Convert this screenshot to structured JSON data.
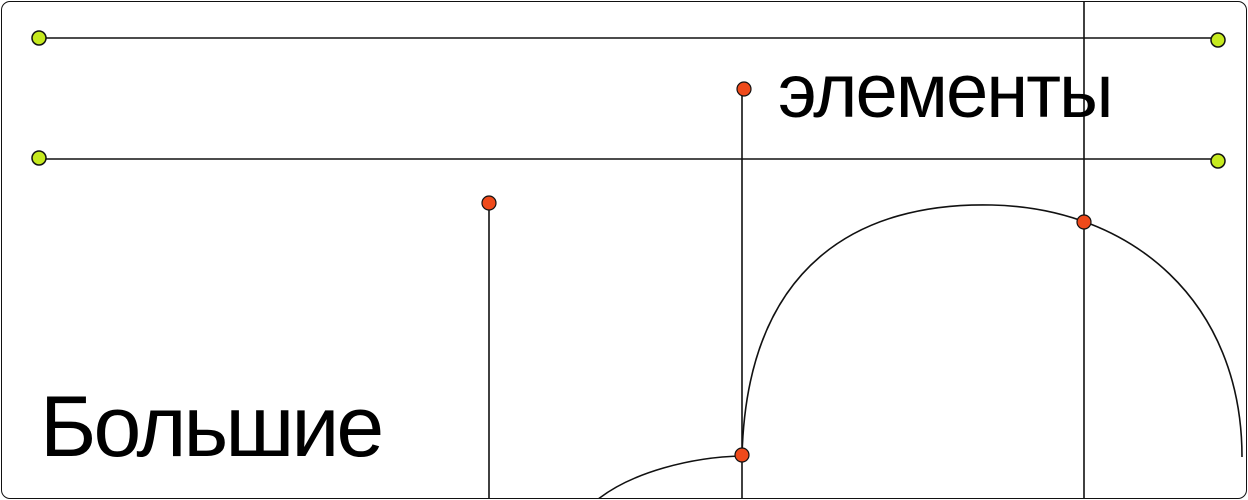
{
  "banner": {
    "word_top": "элементы",
    "word_bottom": "Большие"
  },
  "colors": {
    "line": "#111111",
    "green_dot": "#c6ea1f",
    "orange_dot": "#ef4a1b",
    "background": "#ffffff"
  }
}
